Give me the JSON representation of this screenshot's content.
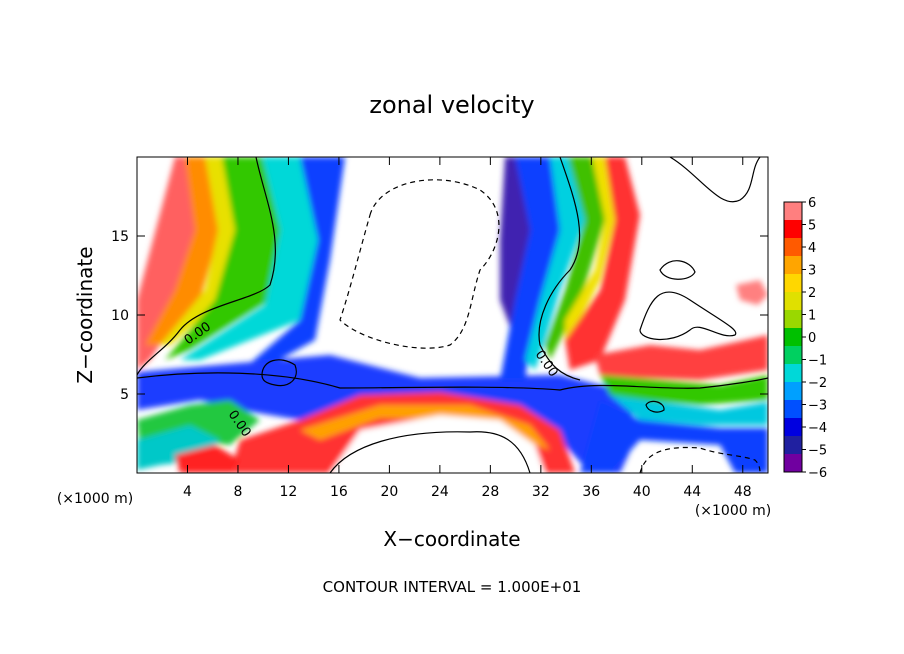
{
  "chart_data": {
    "type": "heatmap",
    "title": "zonal velocity",
    "xlabel": "X−coordinate",
    "ylabel": "Z−coordinate",
    "x_unit_left": "(×1000 m)",
    "x_unit_right": "(×1000 m)",
    "footer": "CONTOUR INTERVAL = 1.000E+01",
    "contour_label": "0.00",
    "xlim": [
      0,
      50
    ],
    "ylim": [
      0,
      20
    ],
    "x_ticks": [
      4,
      8,
      12,
      16,
      20,
      24,
      28,
      32,
      36,
      40,
      44,
      48
    ],
    "x_tick_labels": [
      "4",
      "8",
      "12",
      "16",
      "20",
      "24",
      "28",
      "32",
      "36",
      "40",
      "44",
      "48"
    ],
    "y_ticks": [
      5,
      10,
      15
    ],
    "y_tick_labels": [
      "5",
      "10",
      "15"
    ],
    "colorbar": {
      "range": [
        -6,
        6
      ],
      "labels": [
        "6",
        "5",
        "4",
        "3",
        "2",
        "1",
        "0",
        "−1",
        "−2",
        "−3",
        "−4",
        "−5",
        "−6"
      ],
      "colors": [
        "#ff7f7f",
        "#ff0000",
        "#ff5a00",
        "#ffa500",
        "#ffd700",
        "#e0e000",
        "#9ad800",
        "#00c000",
        "#00d060",
        "#00d8d8",
        "#00a0ff",
        "#0050ff",
        "#0000e0",
        "#2020a0",
        "#7000a0"
      ]
    }
  }
}
